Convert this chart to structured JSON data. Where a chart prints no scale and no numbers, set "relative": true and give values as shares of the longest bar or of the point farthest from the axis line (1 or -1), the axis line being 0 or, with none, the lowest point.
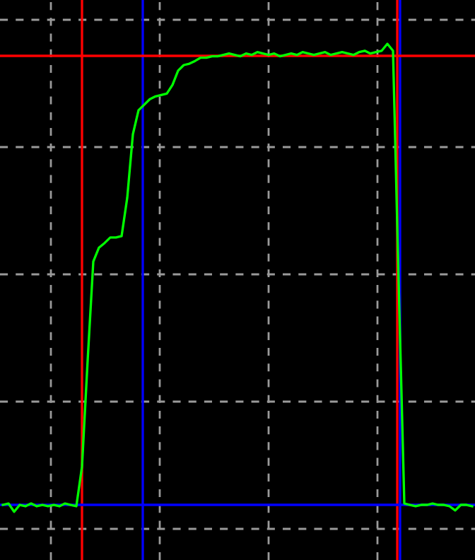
{
  "chart_data": {
    "type": "line",
    "relative": true,
    "grid": true,
    "marker": "none",
    "line_style": "solid",
    "categories": [
      null,
      null,
      null,
      null,
      null,
      null,
      null,
      null,
      null,
      null,
      null,
      null,
      null,
      null,
      null,
      null,
      null,
      null,
      null,
      null,
      null,
      null,
      null,
      null,
      null,
      null,
      null,
      null,
      null,
      null,
      null,
      null,
      null,
      null,
      null,
      null,
      null,
      null,
      null,
      null,
      null,
      null,
      null,
      null,
      null,
      null,
      null,
      null,
      null,
      null,
      null,
      null,
      null,
      null,
      null,
      null,
      null,
      null,
      null,
      null,
      null,
      null,
      null,
      null,
      null,
      null,
      null,
      null,
      null,
      null,
      null,
      null,
      null,
      null,
      null,
      null,
      null,
      null,
      null,
      null,
      null,
      null,
      null,
      null
    ],
    "series": [
      {
        "color": "#00ff00",
        "values": [
          0,
          0.003,
          -0.015,
          0,
          -0.003,
          0.003,
          -0.003,
          0,
          -0.003,
          0,
          -0.003,
          0.003,
          0,
          -0.003,
          0.083,
          0.313,
          0.528,
          0.558,
          0.568,
          0.58,
          0.58,
          0.583,
          0.666,
          0.804,
          0.856,
          0.868,
          0.88,
          0.886,
          0.889,
          0.892,
          0.911,
          0.942,
          0.954,
          0.957,
          0.963,
          0.97,
          0.97,
          0.973,
          0.973,
          0.976,
          0.979,
          0.976,
          0.973,
          0.979,
          0.976,
          0.982,
          0.979,
          0.976,
          0.979,
          0.973,
          0.976,
          0.979,
          0.976,
          0.982,
          0.979,
          0.976,
          0.979,
          0.982,
          0.976,
          0.979,
          0.982,
          0.979,
          0.976,
          0.982,
          0.985,
          0.979,
          0.982,
          0.985,
          1,
          0.985,
          0.481,
          0.003,
          0,
          -0.003,
          0,
          0,
          0.003,
          0,
          0,
          -0.003,
          -0.012,
          0,
          0,
          -0.003
        ]
      }
    ]
  }
}
